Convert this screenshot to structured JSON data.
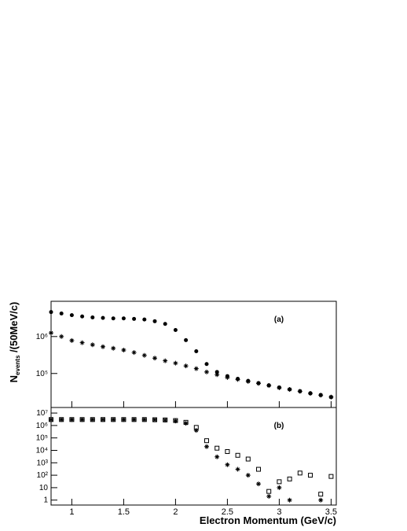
{
  "chart_data": [
    {
      "type": "scatter",
      "label": "(a)",
      "ylabel": "N",
      "ylabel_sub": "events",
      "ylabel_rest": " /(50MeV/c)",
      "log_y": true,
      "x": [
        0.8,
        0.9,
        1.0,
        1.1,
        1.2,
        1.3,
        1.4,
        1.5,
        1.6,
        1.7,
        1.8,
        1.9,
        2.0,
        2.1,
        2.2,
        2.3,
        2.4,
        2.5,
        2.6,
        2.7,
        2.8,
        2.9,
        3.0,
        3.1,
        3.2,
        3.3,
        3.4,
        3.5
      ],
      "xlim": [
        0.8,
        3.55
      ],
      "xticks": [
        1,
        1.5,
        2,
        2.5,
        3,
        3.5
      ],
      "ylim": [
        12000,
        9000000
      ],
      "yticks": [
        {
          "value": 100000,
          "label": "10⁵"
        },
        {
          "value": 1000000,
          "label": "10⁶"
        }
      ],
      "series": [
        {
          "color": "#000000",
          "marker": "circle",
          "values": [
            4600000,
            4200000,
            3800000,
            3500000,
            3300000,
            3200000,
            3100000,
            3100000,
            3000000,
            2900000,
            2600000,
            2200000,
            1500000,
            800000,
            400000,
            180000,
            110000,
            85000,
            72000,
            63000,
            55000,
            48000,
            42000,
            37000,
            33000,
            29000,
            26000,
            23000
          ]
        },
        {
          "color": "#000000",
          "marker": "star",
          "values": [
            1260000,
            1000000,
            780000,
            680000,
            600000,
            530000,
            480000,
            430000,
            370000,
            310000,
            260000,
            220000,
            190000,
            160000,
            135000,
            110000,
            93000,
            78000,
            69000,
            61000,
            54000,
            47000,
            41000,
            37000,
            33000,
            29000,
            26000,
            23000
          ]
        }
      ]
    },
    {
      "type": "scatter",
      "label": "(b)",
      "xlabel": "Electron Momentum (GeV/c)",
      "log_y": true,
      "x": [
        0.8,
        0.9,
        1.0,
        1.1,
        1.2,
        1.3,
        1.4,
        1.5,
        1.6,
        1.7,
        1.8,
        1.9,
        2.0,
        2.1,
        2.2,
        2.3,
        2.4,
        2.5,
        2.6,
        2.7,
        2.8,
        2.9,
        3.0,
        3.1,
        3.2,
        3.3,
        3.4,
        3.5
      ],
      "xlim": [
        0.8,
        3.55
      ],
      "xticks": [
        1,
        1.5,
        2,
        2.5,
        3,
        3.5
      ],
      "ylim": [
        0.4,
        28000000
      ],
      "yticks": [
        1,
        10,
        {
          "value": 100,
          "label": "10²"
        },
        {
          "value": 1000,
          "label": "10³"
        },
        {
          "value": 10000,
          "label": "10⁴"
        },
        {
          "value": 100000,
          "label": "10⁵"
        },
        {
          "value": 1000000,
          "label": "10⁶"
        },
        {
          "value": 10000000,
          "label": "10⁷"
        }
      ],
      "series": [
        {
          "color": "#000000",
          "marker": "square",
          "values": [
            3000000,
            3000000,
            3000000,
            3000000,
            3000000,
            3000000,
            3000000,
            3000000,
            3000000,
            3000000,
            2900000,
            2800000,
            2500000,
            1800000,
            700000,
            60000,
            15000,
            8000,
            4000,
            2000,
            300,
            5,
            30,
            50,
            150,
            100,
            3,
            80
          ]
        },
        {
          "color": "#000000",
          "marker": "star",
          "values": [
            3000000,
            3000000,
            3000000,
            3000000,
            3000000,
            3000000,
            3000000,
            3000000,
            3000000,
            3000000,
            2900000,
            2700000,
            2300000,
            1500000,
            400000,
            20000,
            3000,
            700,
            300,
            100,
            20,
            2,
            10,
            1,
            null,
            null,
            1,
            null
          ]
        }
      ]
    }
  ]
}
